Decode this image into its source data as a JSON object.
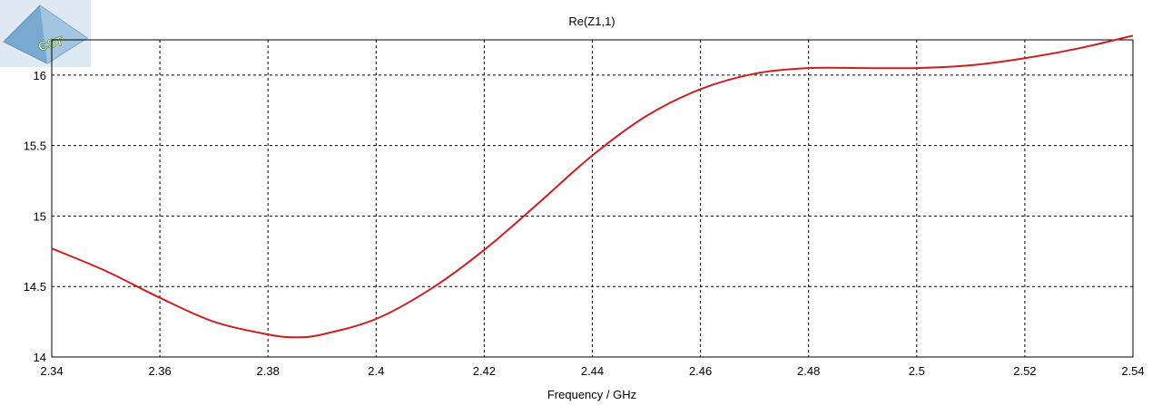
{
  "logo": {
    "text": "CST",
    "icon": "cst-pyramid-logo"
  },
  "chart_data": {
    "type": "line",
    "title": "Re(Z1,1)",
    "xlabel": "Frequency / GHz",
    "ylabel": "",
    "xlim": [
      2.34,
      2.54
    ],
    "ylim": [
      14,
      16.25
    ],
    "xticks": [
      "2.34",
      "2.36",
      "2.38",
      "2.4",
      "2.42",
      "2.44",
      "2.46",
      "2.48",
      "2.5",
      "2.52",
      "2.54"
    ],
    "yticks": [
      "14",
      "14.5",
      "15",
      "15.5",
      "16"
    ],
    "grid": true,
    "grid_style": "dashed",
    "colors": {
      "line": "#cc1f1f",
      "grid": "#000000",
      "axis": "#000000"
    },
    "series": [
      {
        "x": [
          2.34,
          2.35,
          2.36,
          2.37,
          2.38,
          2.385,
          2.39,
          2.4,
          2.41,
          2.42,
          2.43,
          2.44,
          2.45,
          2.46,
          2.47,
          2.48,
          2.49,
          2.5,
          2.51,
          2.52,
          2.53,
          2.54
        ],
        "y": [
          14.77,
          14.61,
          14.42,
          14.25,
          14.16,
          14.14,
          14.16,
          14.27,
          14.48,
          14.76,
          15.09,
          15.43,
          15.71,
          15.9,
          16.01,
          16.05,
          16.05,
          16.05,
          16.07,
          16.12,
          16.19,
          16.28
        ]
      }
    ]
  }
}
